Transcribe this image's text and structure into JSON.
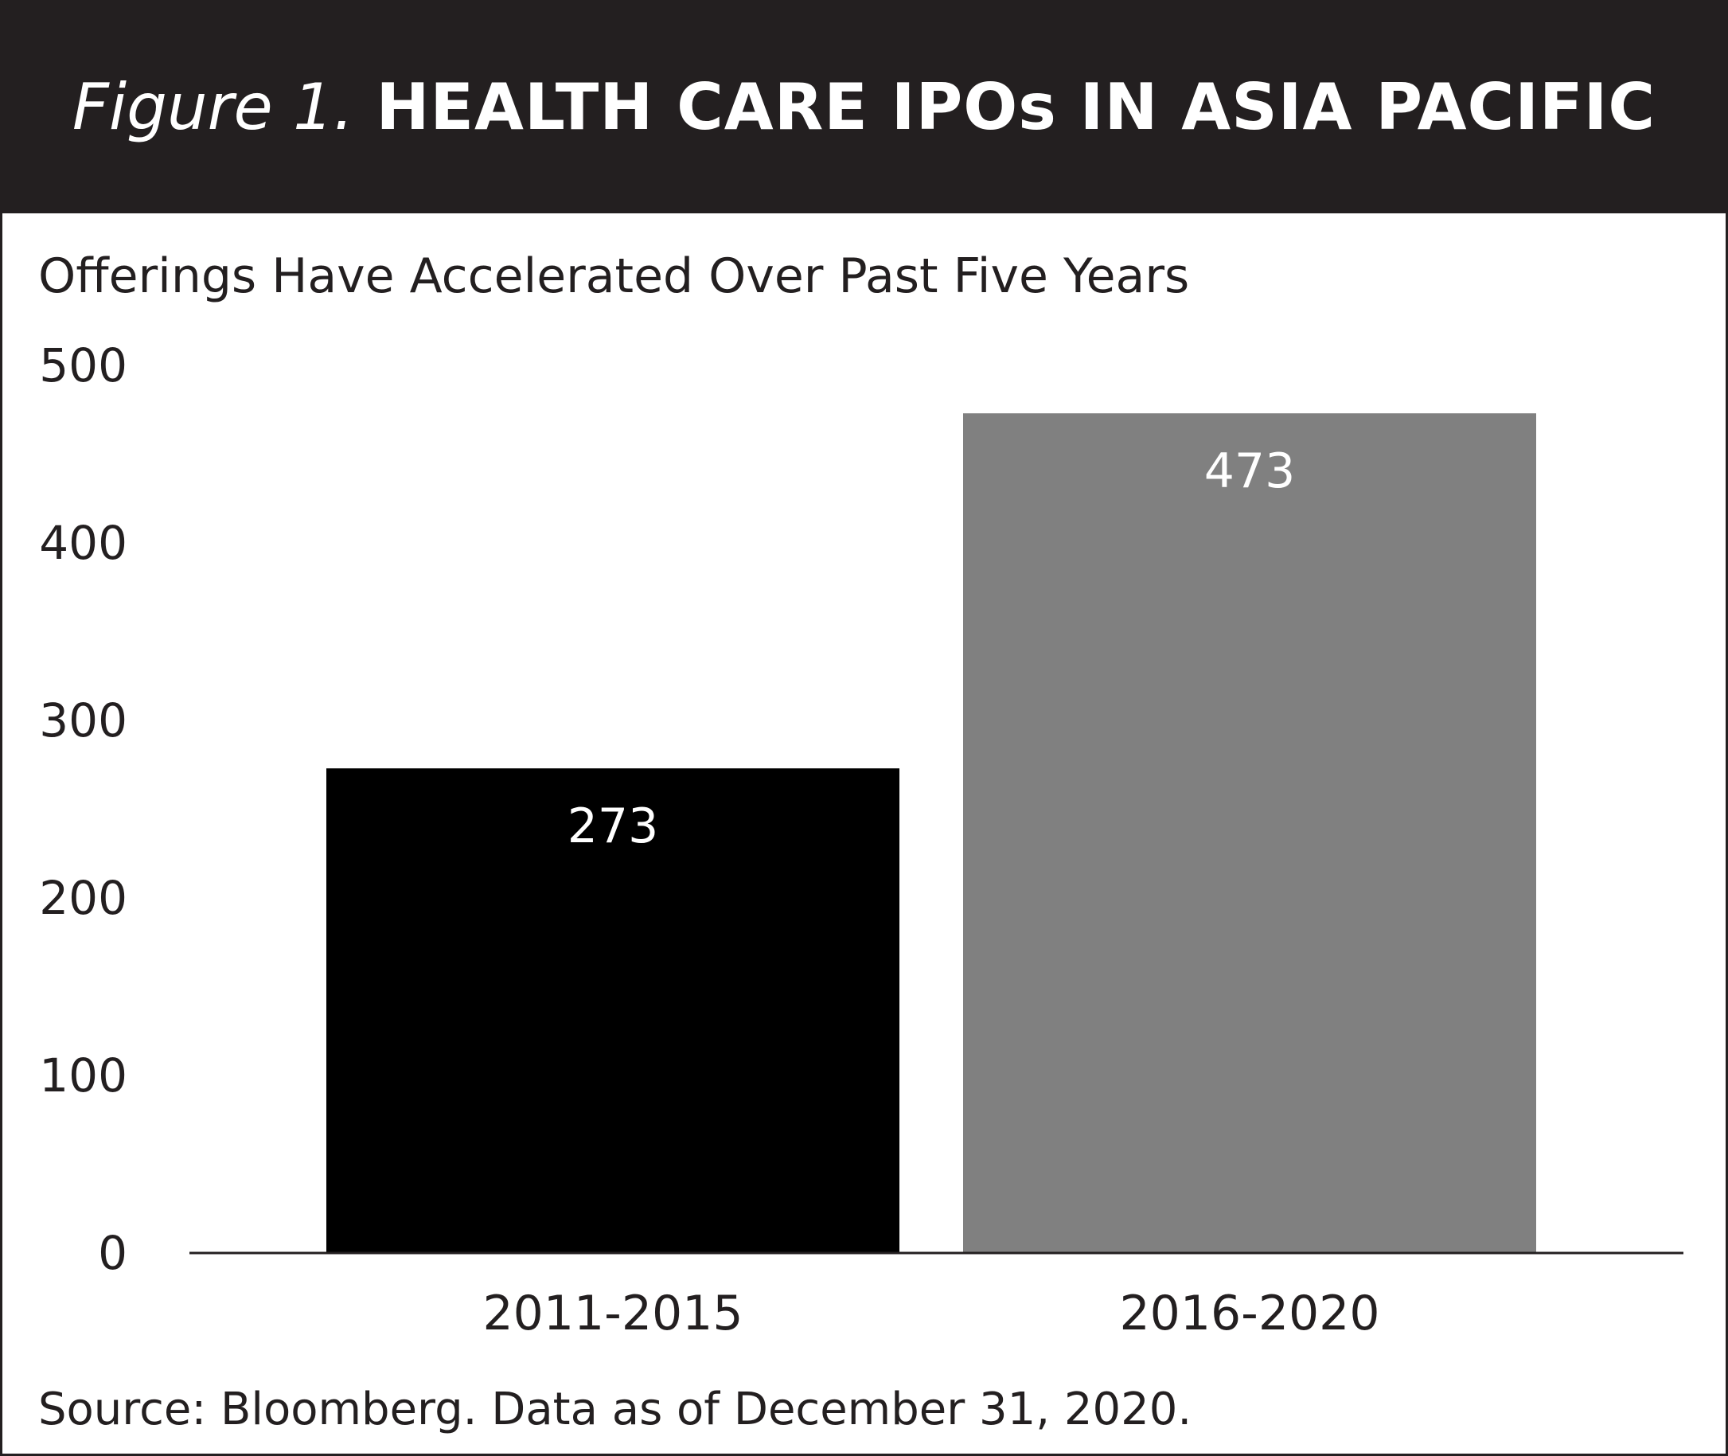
{
  "figure": {
    "number_label": "Figure 1.",
    "title": "HEALTH CARE IPOs IN ASIA PACIFIC",
    "subtitle": "Offerings Have Accelerated Over Past Five Years",
    "source": "Source: Bloomberg. Data as of December 31, 2020."
  },
  "chart_data": {
    "type": "bar",
    "title": "HEALTH CARE IPOs IN ASIA PACIFIC",
    "subtitle": "Offerings Have Accelerated Over Past Five Years",
    "categories": [
      "2011-2015",
      "2016-2020"
    ],
    "values": [
      273,
      473
    ],
    "bar_colors": [
      "#000000",
      "#808080"
    ],
    "data_labels": [
      "273",
      "473"
    ],
    "xlabel": "",
    "ylabel": "",
    "ylim": [
      0,
      500
    ],
    "yticks": [
      0,
      100,
      200,
      300,
      400,
      500
    ],
    "grid": false,
    "legend": "none"
  },
  "colors": {
    "header_bg": "#231f20",
    "header_text": "#ffffff",
    "axis": "#231f20"
  }
}
